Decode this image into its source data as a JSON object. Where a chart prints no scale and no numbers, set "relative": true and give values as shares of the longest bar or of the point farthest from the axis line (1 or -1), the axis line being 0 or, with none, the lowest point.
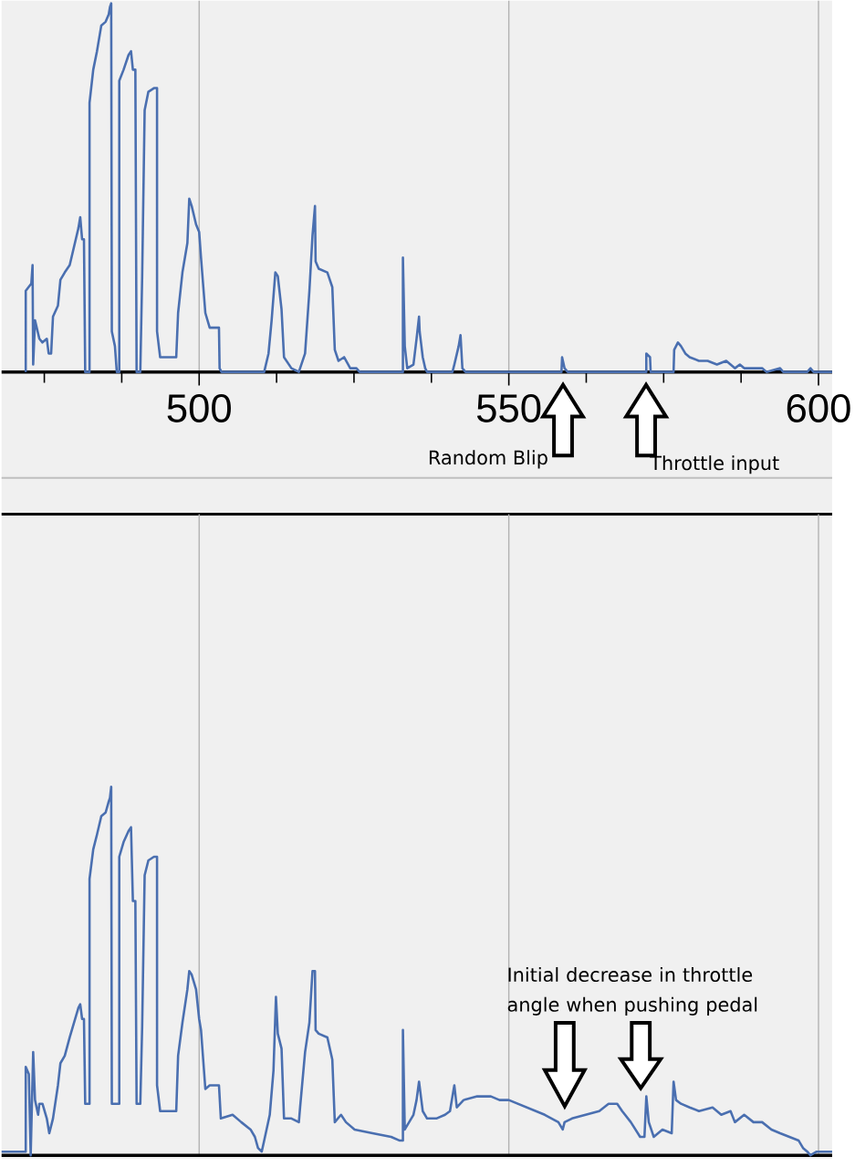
{
  "chart_data": [
    {
      "type": "line",
      "relative": true,
      "color": "#4a6fb0",
      "grid": "x",
      "xlim": [
        468.1,
        602.2
      ],
      "xticks": [
        {
          "value": 475,
          "label": null
        },
        {
          "value": 487.5,
          "label": null
        },
        500,
        {
          "value": 512.5,
          "label": null
        },
        {
          "value": 525,
          "label": null
        },
        {
          "value": 537.5,
          "label": null
        },
        550,
        {
          "value": 562.5,
          "label": null
        },
        {
          "value": 575,
          "label": null
        },
        {
          "value": 587.5,
          "label": null
        },
        600
      ],
      "annotations": [
        "Random Blip",
        "Throttle input"
      ],
      "x": [
        472.0,
        472.0,
        472.9,
        473.1,
        473.2,
        473.5,
        474.2,
        474.7,
        475.4,
        475.7,
        476.1,
        476.4,
        477.2,
        477.6,
        478.3,
        479.1,
        479.8,
        480.5,
        480.8,
        481.1,
        481.4,
        481.6,
        482.3,
        482.3,
        482.9,
        483.5,
        484.2,
        484.9,
        485.4,
        485.6,
        485.8,
        485.9,
        486.4,
        486.7,
        487.1,
        487.1,
        487.8,
        488.6,
        489.0,
        489.3,
        489.7,
        489.9,
        490.5,
        490.8,
        491.2,
        491.8,
        492.7,
        493.2,
        493.2,
        493.7,
        496.3,
        496.6,
        497.3,
        498.1,
        498.4,
        498.8,
        499.5,
        500.0,
        500.3,
        501.0,
        501.7,
        503.2,
        503.3,
        503.6,
        510.5,
        511.2,
        511.7,
        512.3,
        512.7,
        513.3,
        513.7,
        514.9,
        516.1,
        517.1,
        517.8,
        518.3,
        518.7,
        518.8,
        519.3,
        520.7,
        521.5,
        521.9,
        522.5,
        523.4,
        524.4,
        525.4,
        525.9,
        532.9,
        532.9,
        533.2,
        533.6,
        534.6,
        535.1,
        535.5,
        535.6,
        536.1,
        536.5,
        536.8,
        540.9,
        541.2,
        541.9,
        542.2,
        542.5,
        543.0,
        558.5,
        558.6,
        559.0,
        559.5,
        572.2,
        572.2,
        572.8,
        572.9,
        576.6,
        576.7,
        577.3,
        577.8,
        578.5,
        579.2,
        580.7,
        582.1,
        583.6,
        585.1,
        586.5,
        587.3,
        588.0,
        589.5,
        590.9,
        591.6,
        593.8,
        594.3,
        598.2,
        598.7,
        599.2,
        602.2
      ],
      "values": [
        0,
        0.22,
        0.24,
        0.29,
        0.02,
        0.14,
        0.09,
        0.08,
        0.09,
        0.05,
        0.05,
        0.15,
        0.18,
        0.25,
        0.27,
        0.29,
        0.34,
        0.39,
        0.42,
        0.36,
        0.36,
        0,
        0,
        0.73,
        0.82,
        0.87,
        0.94,
        0.95,
        0.97,
        0.99,
        1,
        0.11,
        0.07,
        0,
        0,
        0.79,
        0.82,
        0.86,
        0.87,
        0.82,
        0.82,
        0,
        0,
        0.26,
        0.71,
        0.76,
        0.77,
        0.77,
        0.11,
        0.04,
        0.04,
        0.16,
        0.27,
        0.35,
        0.47,
        0.45,
        0.4,
        0.38,
        0.31,
        0.16,
        0.12,
        0.12,
        0.01,
        0,
        0,
        0.05,
        0.14,
        0.27,
        0.26,
        0.17,
        0.04,
        0.01,
        0,
        0.05,
        0.22,
        0.37,
        0.45,
        0.3,
        0.28,
        0.27,
        0.23,
        0.06,
        0.03,
        0.04,
        0.01,
        0.01,
        0,
        0,
        0.31,
        0.07,
        0.01,
        0.02,
        0.09,
        0.15,
        0.11,
        0.04,
        0.01,
        0,
        0,
        0.02,
        0.07,
        0.1,
        0.01,
        0,
        0,
        0.04,
        0.01,
        0,
        0,
        0.05,
        0.04,
        0,
        0,
        0.06,
        0.08,
        0.07,
        0.05,
        0.04,
        0.03,
        0.03,
        0.02,
        0.03,
        0.01,
        0.02,
        0.01,
        0.01,
        0.01,
        0,
        0.01,
        0,
        0,
        0.01,
        0,
        0
      ]
    },
    {
      "type": "line",
      "relative": true,
      "color": "#4a6fb0",
      "grid": "x",
      "tick_labels": false,
      "xlim": [
        468.1,
        602.2
      ],
      "xticks": [
        500,
        550,
        600
      ],
      "annotations": [
        "Initial decrease in throttle angle when pushing pedal"
      ],
      "x": [
        468.1,
        472.0,
        472.0,
        472.5,
        472.8,
        473.2,
        473.5,
        474.0,
        474.2,
        474.7,
        475.4,
        475.8,
        476.4,
        477.2,
        477.6,
        478.3,
        479.1,
        479.8,
        480.5,
        480.8,
        481.1,
        481.4,
        481.6,
        482.3,
        482.3,
        482.9,
        483.5,
        484.2,
        484.9,
        485.4,
        485.6,
        485.8,
        485.9,
        487.1,
        487.1,
        487.8,
        488.6,
        489.0,
        489.3,
        489.7,
        489.9,
        490.5,
        490.8,
        491.2,
        491.8,
        492.7,
        493.2,
        493.2,
        493.7,
        496.3,
        496.6,
        497.3,
        498.1,
        498.4,
        498.8,
        499.5,
        500.0,
        500.3,
        501.0,
        501.7,
        503.2,
        503.5,
        505.4,
        506.8,
        508.3,
        509.0,
        509.5,
        510.1,
        510.5,
        511.4,
        512.0,
        512.4,
        512.7,
        513.3,
        513.7,
        514.9,
        516.1,
        516.3,
        517.1,
        517.8,
        518.3,
        518.7,
        518.8,
        519.3,
        520.7,
        521.5,
        521.9,
        522.9,
        523.7,
        525.1,
        528.0,
        531.0,
        532.4,
        532.9,
        532.9,
        533.2,
        533.9,
        534.6,
        535.1,
        535.5,
        535.8,
        536.1,
        536.8,
        538.3,
        539.7,
        540.5,
        540.9,
        541.2,
        541.6,
        542.7,
        544.9,
        547.1,
        548.5,
        550.0,
        552.9,
        555.8,
        558.0,
        558.7,
        559.0,
        560.2,
        562.4,
        564.6,
        566.1,
        567.5,
        568.3,
        569.7,
        571.2,
        571.9,
        572.2,
        572.6,
        573.4,
        574.8,
        576.3,
        576.6,
        577.0,
        577.8,
        579.2,
        580.7,
        582.9,
        584.3,
        585.8,
        586.5,
        588.0,
        589.5,
        590.9,
        592.4,
        593.8,
        595.3,
        596.8,
        597.5,
        598.2,
        598.7,
        599.7,
        602.2
      ],
      "values": [
        0.01,
        0.01,
        0.24,
        0.22,
        0,
        0.28,
        0.15,
        0.11,
        0.14,
        0.14,
        0.1,
        0.06,
        0.1,
        0.19,
        0.25,
        0.27,
        0.32,
        0.36,
        0.4,
        0.41,
        0.37,
        0.37,
        0.14,
        0.14,
        0.75,
        0.83,
        0.87,
        0.92,
        0.93,
        0.96,
        0.97,
        1,
        0.14,
        0.14,
        0.81,
        0.85,
        0.88,
        0.89,
        0.69,
        0.69,
        0.14,
        0.14,
        0.35,
        0.76,
        0.8,
        0.81,
        0.81,
        0.19,
        0.12,
        0.12,
        0.27,
        0.36,
        0.45,
        0.5,
        0.49,
        0.45,
        0.37,
        0.34,
        0.18,
        0.19,
        0.19,
        0.1,
        0.11,
        0.09,
        0.07,
        0.05,
        0.02,
        0.01,
        0.04,
        0.11,
        0.23,
        0.43,
        0.33,
        0.29,
        0.1,
        0.1,
        0.09,
        0.13,
        0.28,
        0.36,
        0.5,
        0.5,
        0.34,
        0.33,
        0.32,
        0.26,
        0.09,
        0.11,
        0.09,
        0.07,
        0.06,
        0.05,
        0.04,
        0.04,
        0.34,
        0.07,
        0.09,
        0.11,
        0.15,
        0.2,
        0.16,
        0.12,
        0.1,
        0.1,
        0.11,
        0.12,
        0.16,
        0.19,
        0.13,
        0.15,
        0.16,
        0.16,
        0.15,
        0.15,
        0.13,
        0.11,
        0.09,
        0.07,
        0.09,
        0.1,
        0.11,
        0.12,
        0.14,
        0.14,
        0.12,
        0.09,
        0.05,
        0.05,
        0.16,
        0.09,
        0.05,
        0.07,
        0.06,
        0.2,
        0.15,
        0.14,
        0.13,
        0.12,
        0.13,
        0.11,
        0.12,
        0.09,
        0.11,
        0.09,
        0.09,
        0.07,
        0.06,
        0.05,
        0.04,
        0.02,
        0.01,
        0,
        0.01,
        0.01
      ]
    }
  ]
}
